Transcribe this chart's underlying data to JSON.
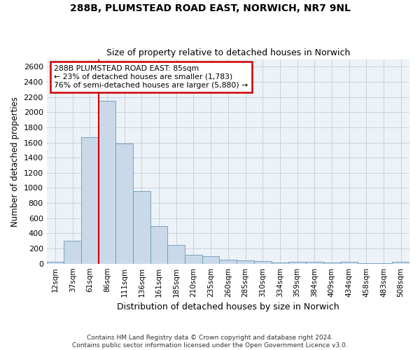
{
  "title": "288B, PLUMSTEAD ROAD EAST, NORWICH, NR7 9NL",
  "subtitle": "Size of property relative to detached houses in Norwich",
  "xlabel": "Distribution of detached houses by size in Norwich",
  "ylabel": "Number of detached properties",
  "footer_line1": "Contains HM Land Registry data © Crown copyright and database right 2024.",
  "footer_line2": "Contains public sector information licensed under the Open Government Licence v3.0.",
  "annotation_line1": "288B PLUMSTEAD ROAD EAST: 85sqm",
  "annotation_line2": "← 23% of detached houses are smaller (1,783)",
  "annotation_line3": "76% of semi-detached houses are larger (5,880) →",
  "bar_color": "#c9d9ea",
  "bar_edge_color": "#6898b8",
  "vline_color": "#cc0000",
  "annotation_box_color": "#cc0000",
  "grid_color": "#c8d0da",
  "background_color": "#edf2f8",
  "categories": [
    "12sqm",
    "37sqm",
    "61sqm",
    "86sqm",
    "111sqm",
    "136sqm",
    "161sqm",
    "185sqm",
    "210sqm",
    "235sqm",
    "260sqm",
    "285sqm",
    "310sqm",
    "334sqm",
    "359sqm",
    "384sqm",
    "409sqm",
    "434sqm",
    "458sqm",
    "483sqm",
    "508sqm"
  ],
  "values": [
    25,
    300,
    1670,
    2150,
    1590,
    960,
    500,
    250,
    120,
    100,
    50,
    40,
    35,
    20,
    25,
    25,
    15,
    25,
    10,
    5,
    25
  ],
  "vline_x": 3,
  "ylim": [
    0,
    2700
  ],
  "yticks": [
    0,
    200,
    400,
    600,
    800,
    1000,
    1200,
    1400,
    1600,
    1800,
    2000,
    2200,
    2400,
    2600
  ]
}
